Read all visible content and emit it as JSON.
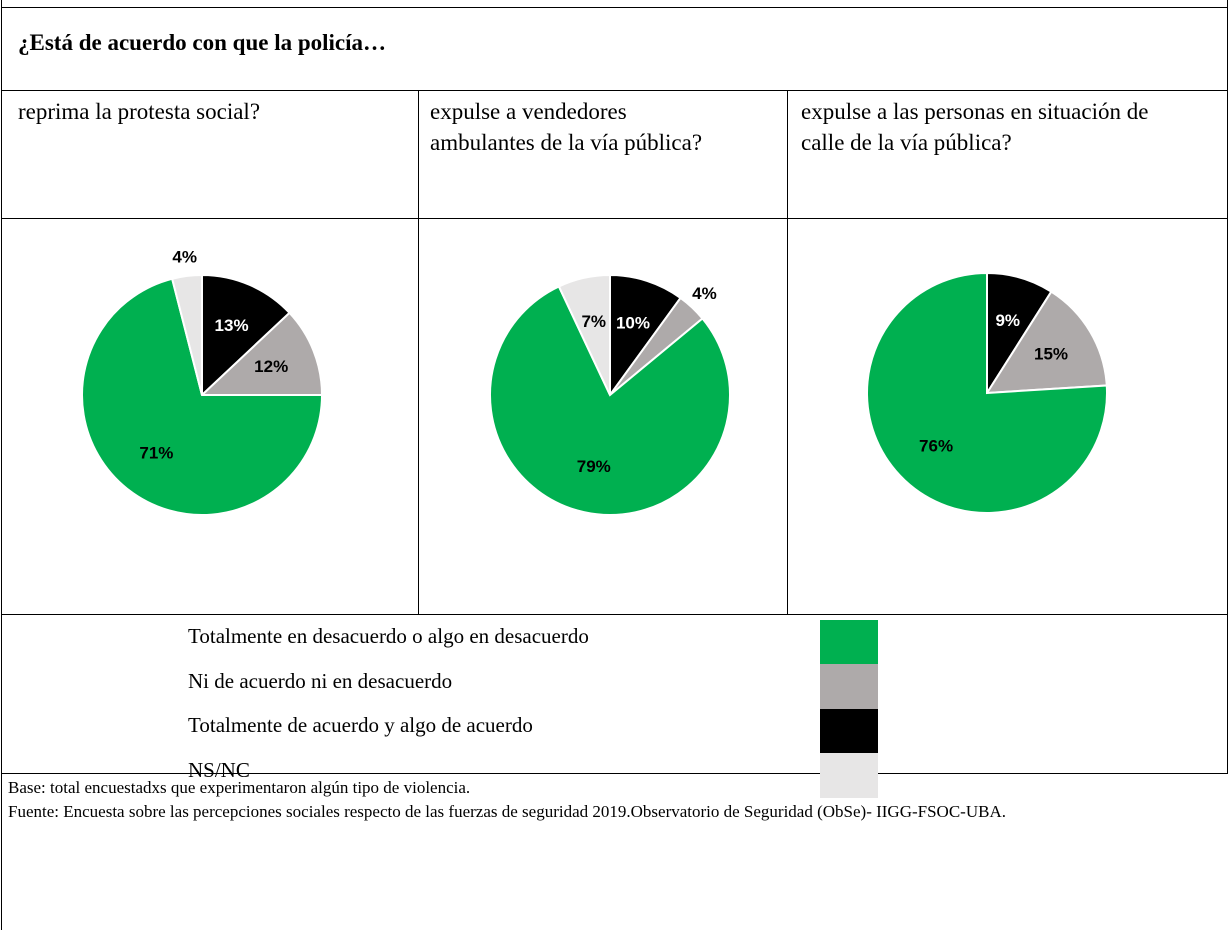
{
  "title": "¿Está de acuerdo con que la policía…",
  "legend": [
    {
      "name": "Totalmente en desacuerdo o algo en desacuerdo",
      "color": "#00b050"
    },
    {
      "name": "Ni de acuerdo ni en desacuerdo",
      "color": "#aeaaaa"
    },
    {
      "name": "Totalmente de acuerdo y algo de acuerdo",
      "color": "#000000"
    },
    {
      "name": "NS/NC",
      "color": "#e7e6e6"
    }
  ],
  "chart_data": [
    {
      "type": "pie",
      "title": "reprima la protesta social?",
      "values": [
        71,
        12,
        13,
        4
      ],
      "value_labels": [
        "71%",
        "12%",
        "13%",
        "4%"
      ]
    },
    {
      "type": "pie",
      "title": "expulse a vendedores ambulantes de la vía pública?",
      "values": [
        79,
        4,
        10,
        7
      ],
      "value_labels": [
        "79%",
        "4%",
        "10%",
        "7%"
      ]
    },
    {
      "type": "pie",
      "title": "expulse a las personas en situación de calle de la vía pública?",
      "values": [
        76,
        15,
        9,
        null
      ],
      "value_labels": [
        "76%",
        "15%",
        "9%",
        null
      ]
    }
  ],
  "notes": [
    "Base: total encuestadxs que experimentaron algún tipo de violencia.",
    "Fuente: Encuesta sobre las percepciones sociales respecto de las fuerzas de seguridad 2019.Observatorio de Seguridad (ObSe)- IIGG-FSOC-UBA."
  ]
}
